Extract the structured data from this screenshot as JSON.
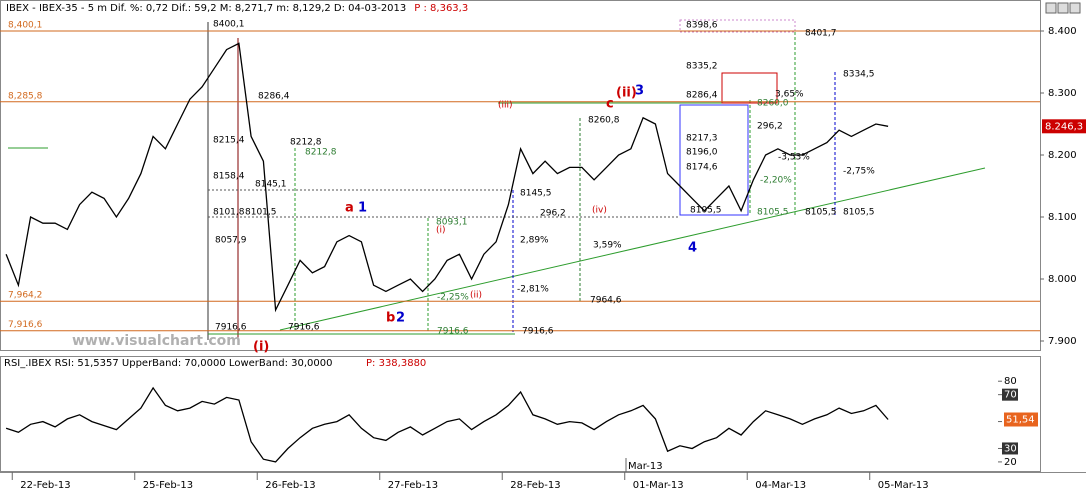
{
  "chart_data": [
    {
      "type": "line",
      "title": "IBEX - IBEX-35 - 5 m Dif. %: 0,72 Dif.: 59,2 M: 8,271,7 m: 8,129,2 D: 04-03-2013",
      "title_note": "P : 8,363,3",
      "watermark": "www.visualchart.com",
      "color": "#000000",
      "x": [
        -0.05,
        0.05,
        0.15,
        0.25,
        0.35,
        0.45,
        0.55,
        0.65,
        0.75,
        0.85,
        0.95,
        1.05,
        1.15,
        1.25,
        1.35,
        1.45,
        1.55,
        1.65,
        1.75,
        1.85,
        1.95,
        2.05,
        2.15,
        2.25,
        2.35,
        2.45,
        2.55,
        2.65,
        2.75,
        2.85,
        2.95,
        3.05,
        3.15,
        3.25,
        3.35,
        3.45,
        3.55,
        3.65,
        3.75,
        3.85,
        3.95,
        4.05,
        4.15,
        4.25,
        4.35,
        4.45,
        4.55,
        4.65,
        4.75,
        4.85,
        4.95,
        5.05,
        5.15,
        5.25,
        5.35,
        5.45,
        5.55,
        5.65,
        5.75,
        5.85,
        5.95,
        6.05,
        6.15,
        6.25,
        6.35,
        6.45,
        6.55,
        6.65,
        6.75,
        6.85,
        6.95,
        7.05,
        7.15
      ],
      "values": [
        8040,
        7990,
        8100,
        8090,
        8090,
        8080,
        8120,
        8140,
        8130,
        8100,
        8130,
        8170,
        8230,
        8210,
        8250,
        8290,
        8310,
        8340,
        8370,
        8380,
        8230,
        8190,
        7950,
        7990,
        8030,
        8010,
        8020,
        8060,
        8070,
        8060,
        7990,
        7980,
        7990,
        8000,
        7980,
        8000,
        8030,
        8040,
        8000,
        8040,
        8060,
        8120,
        8210,
        8170,
        8190,
        8170,
        8180,
        8180,
        8160,
        8180,
        8200,
        8210,
        8260,
        8250,
        8170,
        8150,
        8130,
        8110,
        8130,
        8150,
        8110,
        8160,
        8200,
        8210,
        8200,
        8200,
        8210,
        8220,
        8240,
        8230,
        8240,
        8250,
        8246.3
      ],
      "xlim": [
        -0.1,
        8.39
      ],
      "xticks": [
        {
          "value": 0,
          "label": "22-Feb-13"
        },
        {
          "value": 1,
          "label": "25-Feb-13"
        },
        {
          "value": 2,
          "label": "26-Feb-13"
        },
        {
          "value": 3,
          "label": "27-Feb-13"
        },
        {
          "value": 4,
          "label": "28-Feb-13"
        },
        {
          "value": 5,
          "label": "01-Mar-13"
        },
        {
          "value": 6,
          "label": "04-Mar-13"
        },
        {
          "value": 7,
          "label": "05-Mar-13"
        }
      ],
      "date_note": "Mar-13",
      "ylim": [
        7885.5,
        8450
      ],
      "yticks": [
        {
          "value": 8400,
          "label": "8.400"
        },
        {
          "value": 8300,
          "label": "8.300"
        },
        {
          "value": 8200,
          "label": "8.200"
        },
        {
          "value": 8100,
          "label": "8.100"
        },
        {
          "value": 8000,
          "label": "8.000"
        },
        {
          "value": 7900,
          "label": "7.900"
        }
      ],
      "last": {
        "value": 8246.3,
        "label": "8.246,3"
      },
      "levels": [
        {
          "value": 8400.1,
          "label": "8,400,1",
          "color": "#d2691e"
        },
        {
          "value": 8285.8,
          "label": "8,285,8",
          "color": "#d2691e"
        },
        {
          "value": 7964.2,
          "label": "7,964,2",
          "color": "#d2691e"
        },
        {
          "value": 7916.6,
          "label": "7,916,6",
          "color": "#d2691e"
        }
      ],
      "annotations": [
        {
          "text": "8400,1",
          "color": "#000000"
        },
        {
          "text": "8286,4",
          "color": "#000000"
        },
        {
          "text": "8215,4",
          "color": "#000000"
        },
        {
          "text": "8158,4",
          "color": "#000000"
        },
        {
          "text": "8145,1",
          "color": "#000000"
        },
        {
          "text": "8101,8",
          "color": "#000000"
        },
        {
          "text": "8101,5",
          "color": "#000000"
        },
        {
          "text": "8212,8",
          "color": "#000000"
        },
        {
          "text": "8212,8",
          "color": "#2e7d32"
        },
        {
          "text": "8057,9",
          "color": "#000000"
        },
        {
          "text": "7916,6",
          "color": "#000000"
        },
        {
          "text": "7916,6",
          "color": "#000000"
        },
        {
          "text": "8093,1",
          "color": "#2e7d32"
        },
        {
          "text": "7916,6",
          "color": "#2e7d32"
        },
        {
          "text": "-2,25%",
          "color": "#2e7d32"
        },
        {
          "text": "(i)",
          "color": "#cc0000"
        },
        {
          "text": "(ii)",
          "color": "#cc0000"
        },
        {
          "text": "(iii)",
          "color": "#cc0000"
        },
        {
          "text": "(iv)",
          "color": "#cc0000"
        },
        {
          "text": "8145,5",
          "color": "#000000"
        },
        {
          "text": "296,2",
          "color": "#000000"
        },
        {
          "text": "2,89%",
          "color": "#000000"
        },
        {
          "text": "-2,81%",
          "color": "#000000"
        },
        {
          "text": "7916,6",
          "color": "#000000"
        },
        {
          "text": "8260,8",
          "color": "#000000"
        },
        {
          "text": "3,59%",
          "color": "#000000"
        },
        {
          "text": "7964,6",
          "color": "#000000"
        },
        {
          "text": "c",
          "color": "#cc0000"
        },
        {
          "text": "(ii)",
          "color": "#cc0000"
        },
        {
          "text": "3",
          "color": "#0000cc"
        },
        {
          "text": "a",
          "color": "#cc0000"
        },
        {
          "text": "1",
          "color": "#0000cc"
        },
        {
          "text": "b",
          "color": "#cc0000"
        },
        {
          "text": "2",
          "color": "#0000cc"
        },
        {
          "text": "(i)",
          "color": "#cc0000"
        },
        {
          "text": "4",
          "color": "#0000cc"
        },
        {
          "text": "8398,6",
          "color": "#000000"
        },
        {
          "text": "8335,2",
          "color": "#000000"
        },
        {
          "text": "8286,4",
          "color": "#000000"
        },
        {
          "text": "8217,3",
          "color": "#000000"
        },
        {
          "text": "8196,0",
          "color": "#000000"
        },
        {
          "text": "8174,6",
          "color": "#000000"
        },
        {
          "text": "8105,5",
          "color": "#000000"
        },
        {
          "text": "8401,7",
          "color": "#000000"
        },
        {
          "text": "8334,5",
          "color": "#000000"
        },
        {
          "text": "3,65%",
          "color": "#000000"
        },
        {
          "text": "8260,0",
          "color": "#2e7d32"
        },
        {
          "text": "296,2",
          "color": "#000000"
        },
        {
          "text": "-2,20%",
          "color": "#2e7d32"
        },
        {
          "text": "-3,53%",
          "color": "#000000"
        },
        {
          "text": "-2,75%",
          "color": "#000000"
        },
        {
          "text": "8105,5",
          "color": "#2e7d32"
        },
        {
          "text": "8105,5",
          "color": "#000000"
        },
        {
          "text": "8105,5",
          "color": "#000000"
        }
      ]
    },
    {
      "type": "line",
      "title": "RSI_.IBEX RSI: 51,5357 UpperBand: 70,0000 LowerBand: 30,0000",
      "title_note": "P: 338,3880",
      "color": "#000000",
      "values": [
        45,
        42,
        48,
        50,
        46,
        52,
        55,
        50,
        47,
        44,
        52,
        60,
        75,
        62,
        58,
        60,
        65,
        63,
        68,
        66,
        35,
        22,
        20,
        30,
        38,
        45,
        48,
        50,
        55,
        45,
        38,
        36,
        42,
        46,
        40,
        45,
        50,
        52,
        44,
        50,
        55,
        62,
        72,
        55,
        52,
        48,
        50,
        49,
        44,
        50,
        55,
        58,
        62,
        52,
        28,
        32,
        30,
        35,
        38,
        45,
        40,
        50,
        58,
        55,
        52,
        48,
        52,
        55,
        60,
        56,
        58,
        62,
        51.5357
      ],
      "ylim": [
        12.5,
        98.75
      ],
      "yticks": [
        80,
        70,
        50,
        30,
        20
      ],
      "last": {
        "value": 51.5357,
        "label": "51,54"
      }
    }
  ]
}
